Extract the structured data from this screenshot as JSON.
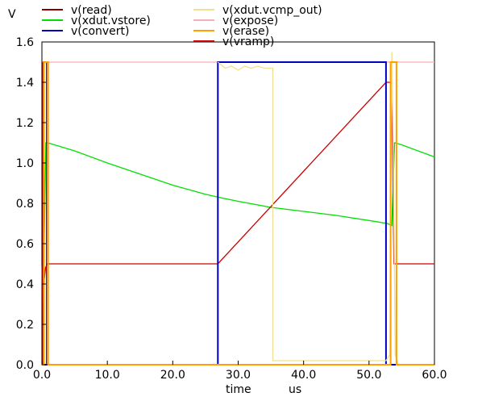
{
  "chart_data": {
    "type": "line",
    "ylabel": "V",
    "xlabel": "time",
    "xunit": "us",
    "xlim": [
      0,
      60
    ],
    "ylim": [
      0,
      1.6
    ],
    "xticks": [
      "0.0",
      "10.0",
      "20.0",
      "30.0",
      "40.0",
      "50.0",
      "60.0"
    ],
    "yticks": [
      "0.0",
      "0.2",
      "0.4",
      "0.6",
      "0.8",
      "1.0",
      "1.2",
      "1.4",
      "1.6"
    ],
    "grid": false,
    "legend_placement": "top",
    "series": [
      {
        "name": "v(read)",
        "color": "#8b0000",
        "x": [
          0,
          0.1,
          0.1,
          0.7,
          0.7,
          60
        ],
        "y": [
          0,
          0,
          1.5,
          1.5,
          0,
          0
        ]
      },
      {
        "name": "v(xdut.vstore)",
        "color": "#00e000",
        "x": [
          0.3,
          0.6,
          0.9,
          5,
          10,
          15,
          20,
          25,
          27,
          30,
          35,
          40,
          45,
          50,
          52.8,
          53.5,
          53.9,
          55,
          60
        ],
        "y": [
          0.5,
          1.1,
          1.1,
          1.06,
          1.0,
          0.945,
          0.89,
          0.845,
          0.83,
          0.81,
          0.78,
          0.76,
          0.74,
          0.715,
          0.7,
          0.69,
          1.1,
          1.09,
          1.03
        ]
      },
      {
        "name": "v(convert)",
        "color": "#0000c0",
        "x": [
          0,
          26.9,
          26.9,
          52.6,
          52.6,
          60
        ],
        "y": [
          0,
          0,
          1.5,
          1.5,
          0,
          0
        ]
      },
      {
        "name": "v(xdut.vcmp_out)",
        "color": "#f0e090",
        "x": [
          26.9,
          28,
          29,
          30,
          31,
          32,
          33,
          34,
          35.3,
          35.3,
          40,
          45,
          50,
          52.6,
          53.2,
          53.5,
          53.7,
          54,
          54.5,
          60
        ],
        "y": [
          1.5,
          1.47,
          1.48,
          1.46,
          1.48,
          1.47,
          1.48,
          1.47,
          1.47,
          0.02,
          0.02,
          0.02,
          0.02,
          0.02,
          0.05,
          1.55,
          1.1,
          0.05,
          0,
          0
        ]
      },
      {
        "name": "v(expose)",
        "color": "#f4b0b8",
        "x": [
          0,
          60
        ],
        "y": [
          1.5,
          1.5
        ]
      },
      {
        "name": "v(erase)",
        "color": "#ffa000",
        "x": [
          0,
          0.3,
          0.3,
          0.95,
          0.95,
          53.3,
          53.3,
          54.2,
          54.2,
          60
        ],
        "y": [
          0,
          0,
          1.5,
          1.5,
          0,
          0,
          1.5,
          1.5,
          0,
          0
        ]
      },
      {
        "name": "v(vramp)",
        "color": "#cc0000",
        "x": [
          0,
          0.15,
          0.35,
          0.55,
          0.8,
          26.9,
          52.6,
          53.1,
          53.5,
          53.8,
          60
        ],
        "y": [
          0.5,
          0.2,
          0.42,
          0.48,
          0.5,
          0.5,
          1.4,
          1.4,
          1.4,
          0.5,
          0.5
        ]
      }
    ]
  }
}
